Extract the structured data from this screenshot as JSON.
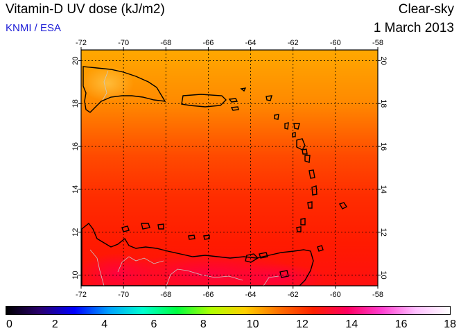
{
  "header": {
    "title": "Vitamin-D UV dose (kJ/m2)",
    "source": "KNMI / ESA",
    "condition": "Clear-sky",
    "date": "1 March 2013"
  },
  "map": {
    "region": "Caribbean",
    "lon_range": [
      -72,
      -58
    ],
    "lat_range": [
      9.5,
      20.5
    ],
    "lon_ticks": [
      "-72",
      "-70",
      "-68",
      "-66",
      "-64",
      "-62",
      "-60",
      "-58"
    ],
    "lat_ticks": [
      "10",
      "12",
      "14",
      "16",
      "18",
      "20"
    ],
    "grid_color": "#000000",
    "coast_color": "#000000",
    "border_color": "#c8c8c8"
  },
  "colorbar": {
    "min": 0,
    "max": 18,
    "labels": [
      "0",
      "2",
      "4",
      "6",
      "8",
      "10",
      "12",
      "14",
      "16",
      "18"
    ],
    "stops": [
      "#000000",
      "#2a0070",
      "#0000ff",
      "#00a0ff",
      "#00ffd0",
      "#00ff40",
      "#b0ff00",
      "#ffd000",
      "#ff7000",
      "#ff2000",
      "#ff0060",
      "#ff40d0",
      "#ffc0ff",
      "#ffffff"
    ]
  }
}
